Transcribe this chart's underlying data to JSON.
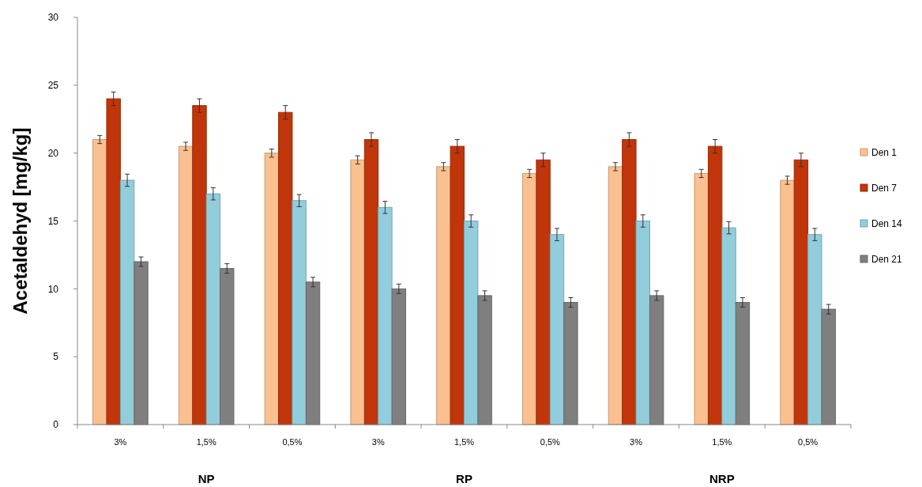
{
  "chart_data": {
    "type": "bar",
    "ylabel": "Acetaldehyd [mg/kg]",
    "categories": [
      "3%",
      "1,5%",
      "0,5%",
      "3%",
      "1,5%",
      "0,5%",
      "3%",
      "1,5%",
      "0,5%"
    ],
    "series": [
      {
        "name": "Den 1",
        "color": "#fac090",
        "values": [
          21,
          20.5,
          20,
          19.5,
          19,
          18.5,
          19,
          18.5,
          18
        ],
        "errors": [
          0.3,
          0.3,
          0.3,
          0.3,
          0.3,
          0.3,
          0.3,
          0.3,
          0.3
        ]
      },
      {
        "name": "Den 7",
        "color": "#c0350a",
        "values": [
          24,
          23.5,
          23,
          21,
          20.5,
          19.5,
          21,
          20.5,
          19.5
        ],
        "errors": [
          0.5,
          0.5,
          0.5,
          0.5,
          0.5,
          0.5,
          0.5,
          0.5,
          0.5
        ]
      },
      {
        "name": "Den 14",
        "color": "#92cddc",
        "values": [
          18,
          17,
          16.5,
          16,
          15,
          14,
          15,
          14.5,
          14
        ],
        "errors": [
          0.45,
          0.45,
          0.45,
          0.45,
          0.45,
          0.45,
          0.45,
          0.45,
          0.45
        ]
      },
      {
        "name": "Den 21",
        "color": "#7f7f7f",
        "values": [
          12,
          11.5,
          10.5,
          10,
          9.5,
          9,
          9.5,
          9,
          8.5
        ],
        "errors": [
          0.35,
          0.35,
          0.35,
          0.35,
          0.35,
          0.35,
          0.35,
          0.35,
          0.35
        ]
      }
    ],
    "ylim": [
      0,
      30
    ],
    "yticks": [
      0,
      5,
      10,
      15,
      20,
      25,
      30
    ],
    "legend": "right",
    "grid": false,
    "annotations": [
      "NP",
      "RP",
      "NRP"
    ]
  }
}
